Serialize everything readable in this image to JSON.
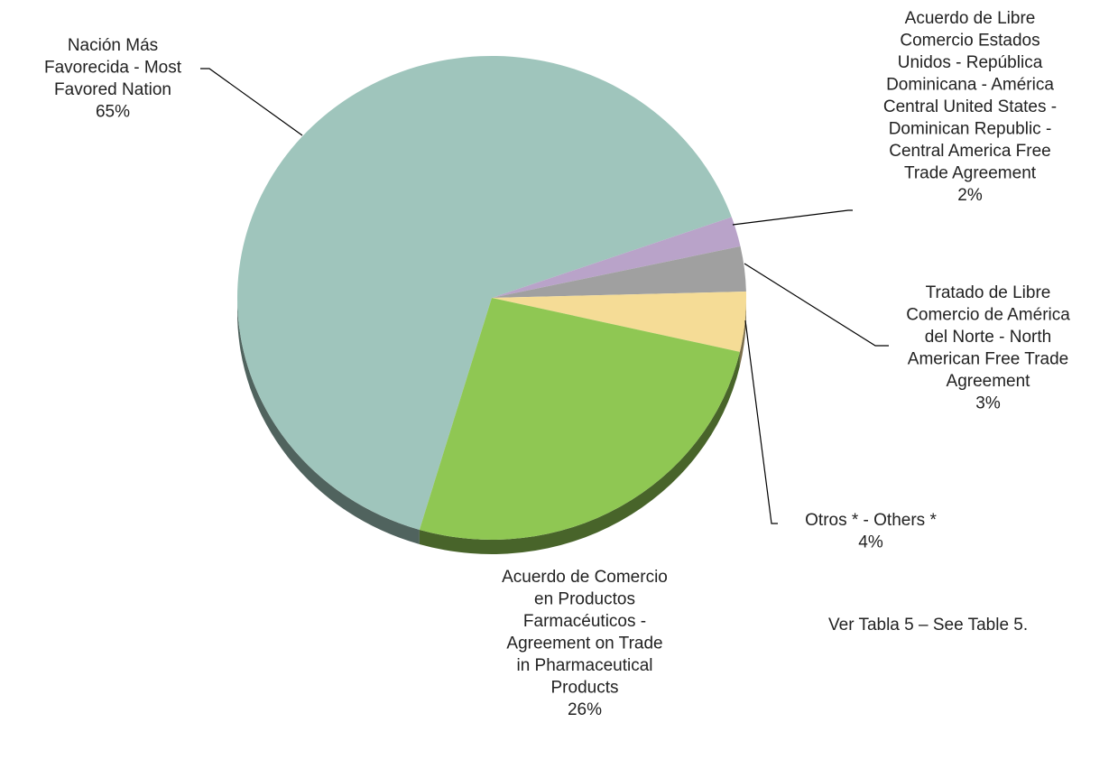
{
  "chart_data": {
    "type": "pie",
    "categories": [
      "Nación Más Favorecida - Most Favored Nation",
      "Acuerdo de Libre Comercio Estados Unidos - República Dominicana - América Central United States - Dominican Republic - Central America Free Trade Agreement",
      "Tratado de Libre Comercio de América del Norte - North American Free Trade Agreement",
      "Otros * - Others *",
      "Acuerdo de Comercio en Productos Farmacéuticos - Agreement on Trade in Pharmaceutical Products"
    ],
    "values": [
      65,
      2,
      3,
      4,
      26
    ],
    "value_labels": [
      "65%",
      "2%",
      "3%",
      "4%",
      "26%"
    ],
    "colors": [
      "#9fc5bc",
      "#b9a3c9",
      "#a0a0a0",
      "#f5dc96",
      "#8fc753"
    ],
    "annotation": "Ver Tabla 5 – See Table 5."
  }
}
